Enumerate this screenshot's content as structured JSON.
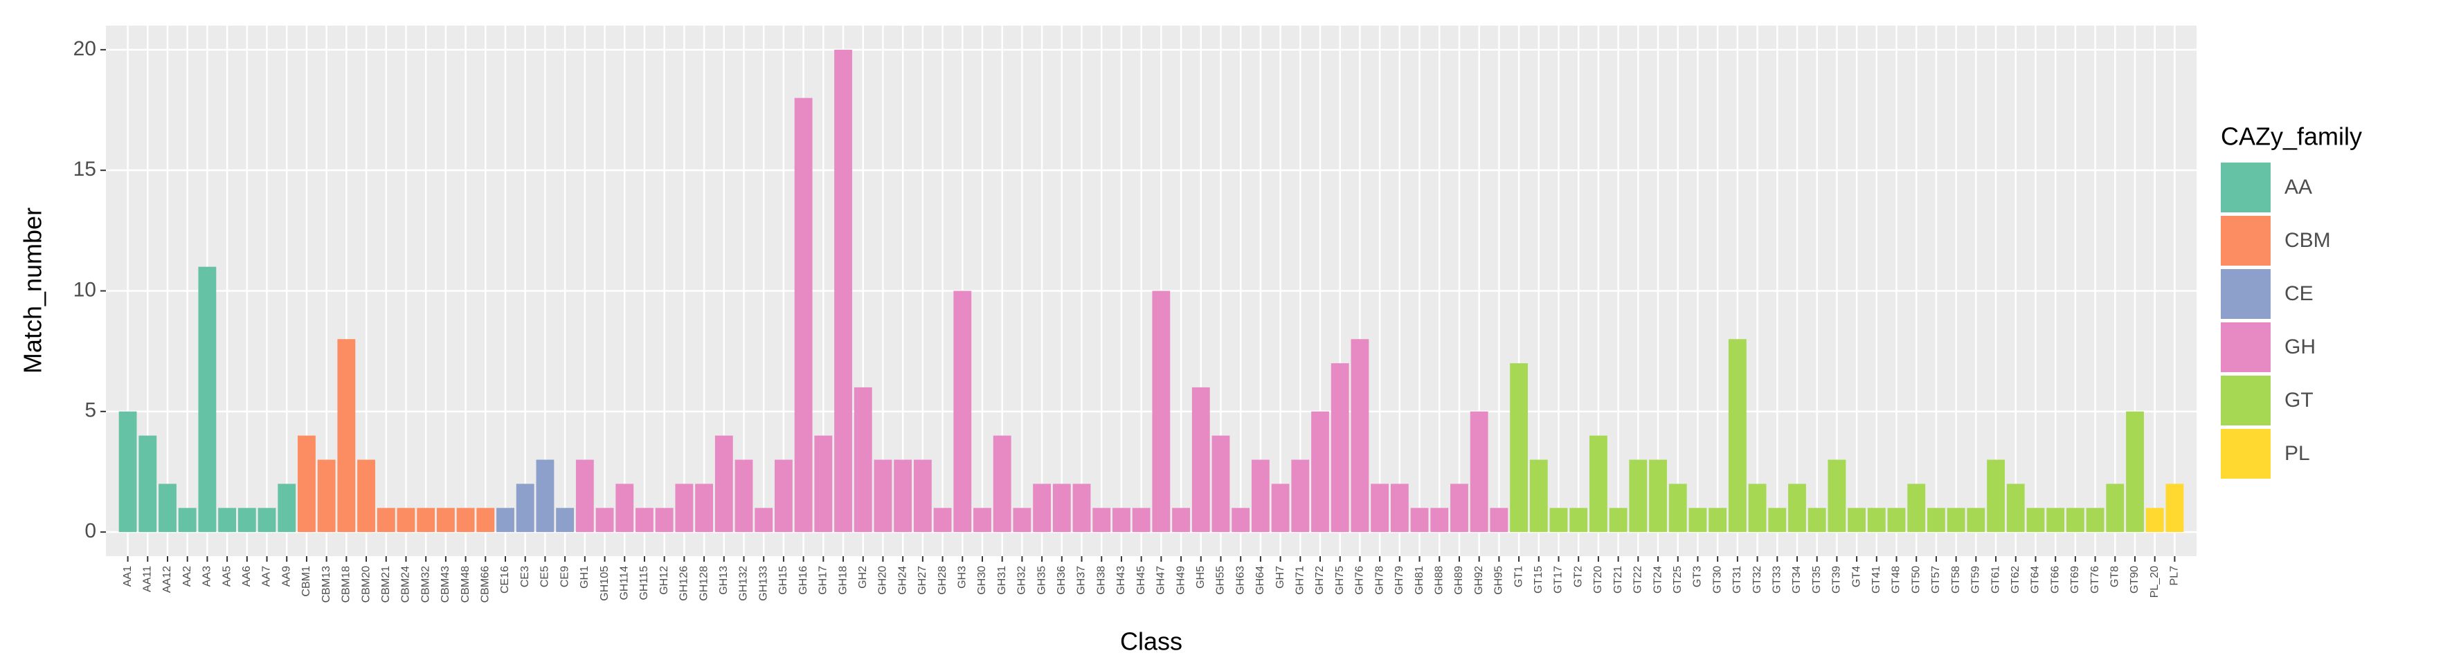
{
  "chart_data": {
    "type": "bar",
    "x_label": "Class",
    "y_label": "Match_number",
    "ylim": [
      -1,
      21
    ],
    "yticks": [
      0,
      5,
      10,
      15,
      20
    ],
    "grid": true,
    "legend": {
      "title": "CAZy_family",
      "position": "right"
    },
    "series": [
      {
        "name": "AA",
        "color": "#66c2a5",
        "categories": [
          "AA1",
          "AA11",
          "AA12",
          "AA2",
          "AA3",
          "AA5",
          "AA6",
          "AA7",
          "AA9"
        ],
        "values": [
          5,
          4,
          2,
          1,
          11,
          1,
          1,
          1,
          2
        ]
      },
      {
        "name": "CBM",
        "color": "#fc8d62",
        "categories": [
          "CBM1",
          "CBM13",
          "CBM18",
          "CBM20",
          "CBM21",
          "CBM24",
          "CBM32",
          "CBM43",
          "CBM48",
          "CBM66"
        ],
        "values": [
          4,
          3,
          8,
          3,
          1,
          1,
          1,
          1,
          1,
          1
        ]
      },
      {
        "name": "CE",
        "color": "#8da0cb",
        "categories": [
          "CE16",
          "CE3",
          "CE5",
          "CE9"
        ],
        "values": [
          1,
          2,
          3,
          1
        ]
      },
      {
        "name": "GH",
        "color": "#e78ac3",
        "categories": [
          "GH1",
          "GH105",
          "GH114",
          "GH115",
          "GH12",
          "GH126",
          "GH128",
          "GH13",
          "GH132",
          "GH133",
          "GH15",
          "GH16",
          "GH17",
          "GH18",
          "GH2",
          "GH20",
          "GH24",
          "GH27",
          "GH28",
          "GH3",
          "GH30",
          "GH31",
          "GH32",
          "GH35",
          "GH36",
          "GH37",
          "GH38",
          "GH43",
          "GH45",
          "GH47",
          "GH49",
          "GH5",
          "GH55",
          "GH63",
          "GH64",
          "GH7",
          "GH71",
          "GH72",
          "GH75",
          "GH76",
          "GH78",
          "GH79",
          "GH81",
          "GH88",
          "GH89",
          "GH92",
          "GH95"
        ],
        "values": [
          3,
          1,
          2,
          1,
          1,
          2,
          2,
          4,
          3,
          1,
          3,
          18,
          4,
          20,
          6,
          3,
          3,
          3,
          1,
          10,
          1,
          4,
          1,
          2,
          2,
          2,
          1,
          1,
          1,
          10,
          1,
          6,
          4,
          1,
          3,
          2,
          3,
          5,
          7,
          8,
          2,
          2,
          1,
          1,
          2,
          5,
          1
        ]
      },
      {
        "name": "GT",
        "color": "#a6d854",
        "categories": [
          "GT1",
          "GT15",
          "GT17",
          "GT2",
          "GT20",
          "GT21",
          "GT22",
          "GT24",
          "GT25",
          "GT3",
          "GT30",
          "GT31",
          "GT32",
          "GT33",
          "GT34",
          "GT35",
          "GT39",
          "GT4",
          "GT41",
          "GT48",
          "GT50",
          "GT57",
          "GT58",
          "GT59",
          "GT61",
          "GT62",
          "GT64",
          "GT66",
          "GT69",
          "GT76",
          "GT8",
          "GT90"
        ],
        "values": [
          7,
          3,
          1,
          1,
          4,
          1,
          3,
          3,
          2,
          1,
          1,
          8,
          2,
          1,
          2,
          1,
          3,
          1,
          1,
          1,
          2,
          1,
          1,
          1,
          3,
          2,
          1,
          1,
          1,
          1,
          2,
          5
        ]
      },
      {
        "name": "PL",
        "color": "#ffd92f",
        "categories": [
          "PL_20",
          "PL7"
        ],
        "values": [
          1,
          2
        ]
      }
    ]
  }
}
